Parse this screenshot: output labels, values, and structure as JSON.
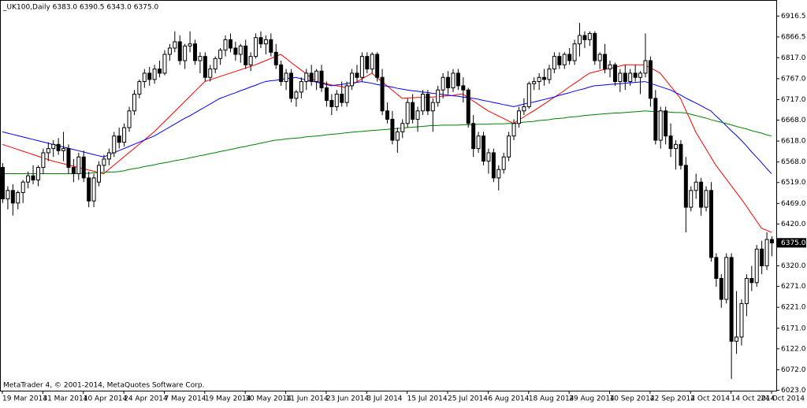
{
  "chart_data": {
    "type": "candlestick",
    "title": "_UK100,Daily  6383.0 6390.5 6343.0 6375.0",
    "footer": "MetaTrader 4, © 2001-2014, MetaQuotes Software Corp.",
    "categories": [
      "19 Mar 2014",
      null,
      null,
      null,
      null,
      null,
      null,
      null,
      "31 Mar 2014",
      null,
      null,
      null,
      null,
      null,
      null,
      null,
      "10 Apr 2014",
      null,
      null,
      null,
      null,
      null,
      null,
      null,
      "24 Apr 2014",
      null,
      null,
      null,
      null,
      null,
      null,
      null,
      "7 May 2014",
      null,
      null,
      null,
      null,
      null,
      null,
      null,
      "19 May 2014",
      null,
      null,
      null,
      null,
      null,
      null,
      null,
      "30 May 2014",
      null,
      null,
      null,
      null,
      null,
      null,
      null,
      "11 Jun 2014",
      null,
      null,
      null,
      null,
      null,
      null,
      null,
      "23 Jun 2014",
      null,
      null,
      null,
      null,
      null,
      null,
      null,
      "3 Jul 2014",
      null,
      null,
      null,
      null,
      null,
      null,
      null,
      "15 Jul 2014",
      null,
      null,
      null,
      null,
      null,
      null,
      null,
      "25 Jul 2014",
      null,
      null,
      null,
      null,
      null,
      null,
      null,
      "6 Aug 2014",
      null,
      null,
      null,
      null,
      null,
      null,
      null,
      "18 Aug 2014",
      null,
      null,
      null,
      null,
      null,
      null,
      null,
      "29 Aug 2014",
      null,
      null,
      null,
      null,
      null,
      null,
      null,
      "10 Sep 2014",
      null,
      null,
      null,
      null,
      null,
      null,
      null,
      "22 Sep 2014",
      null,
      null,
      null,
      null,
      null,
      null,
      null,
      "2 Oct 2014",
      null,
      null,
      null,
      null,
      null,
      null,
      null,
      "14 Oct 2014",
      null,
      null,
      null,
      null,
      null,
      null,
      null,
      "24 Oct 2014"
    ],
    "open": [
      6555,
      6480,
      6500,
      6470,
      6495,
      6520,
      6535,
      6525,
      6555,
      6590,
      6600,
      6610,
      6595,
      6600,
      6555,
      6540,
      6580,
      6530,
      6475,
      6520,
      6560,
      6575,
      6590,
      6630,
      6615,
      6650,
      6690,
      6730,
      6760,
      6780,
      6765,
      6790,
      6780,
      6825,
      6840,
      6855,
      6810,
      6845,
      6850,
      6810,
      6820,
      6770,
      6790,
      6815,
      6835,
      6860,
      6840,
      6825,
      6845,
      6800,
      6820,
      6865,
      6850,
      6860,
      6830,
      6800,
      6760,
      6780,
      6720,
      6735,
      6760,
      6780,
      6760,
      6785,
      6745,
      6715,
      6700,
      6730,
      6710,
      6750,
      6780,
      6770,
      6820,
      6790,
      6825,
      6770,
      6690,
      6670,
      6620,
      6640,
      6660,
      6710,
      6670,
      6690,
      6730,
      6690,
      6710,
      6740,
      6770,
      6745,
      6780,
      6750,
      6740,
      6660,
      6600,
      6630,
      6570,
      6590,
      6530,
      6550,
      6580,
      6630,
      6660,
      6690,
      6700,
      6755,
      6760,
      6770,
      6765,
      6790,
      6820,
      6800,
      6825,
      6810,
      6850,
      6870,
      6860,
      6875,
      6810,
      6825,
      6790,
      6800,
      6760,
      6780,
      6760,
      6780,
      6770,
      6780,
      6810,
      6720,
      6620,
      6690,
      6630,
      6600,
      6610,
      6560,
      6460,
      6500,
      6520,
      6460,
      6500,
      6340,
      6290,
      6240,
      6340,
      6140,
      6150,
      6230,
      6290,
      6280,
      6360,
      6320,
      6383
    ],
    "high": [
      6565,
      6510,
      6515,
      6500,
      6525,
      6545,
      6560,
      6560,
      6600,
      6615,
      6620,
      6625,
      6640,
      6610,
      6575,
      6590,
      6595,
      6545,
      6540,
      6570,
      6585,
      6600,
      6640,
      6650,
      6660,
      6700,
      6740,
      6765,
      6790,
      6795,
      6800,
      6810,
      6835,
      6850,
      6880,
      6870,
      6850,
      6880,
      6860,
      6830,
      6830,
      6800,
      6820,
      6840,
      6870,
      6875,
      6855,
      6850,
      6860,
      6830,
      6875,
      6880,
      6870,
      6875,
      6850,
      6810,
      6790,
      6790,
      6740,
      6770,
      6790,
      6800,
      6790,
      6800,
      6760,
      6730,
      6740,
      6760,
      6760,
      6790,
      6800,
      6830,
      6830,
      6830,
      6830,
      6790,
      6710,
      6690,
      6650,
      6670,
      6720,
      6730,
      6700,
      6740,
      6740,
      6720,
      6750,
      6780,
      6785,
      6790,
      6790,
      6770,
      6745,
      6680,
      6640,
      6640,
      6600,
      6600,
      6560,
      6590,
      6640,
      6670,
      6700,
      6720,
      6760,
      6770,
      6780,
      6790,
      6800,
      6830,
      6830,
      6830,
      6840,
      6860,
      6900,
      6880,
      6880,
      6880,
      6830,
      6850,
      6810,
      6805,
      6790,
      6800,
      6790,
      6800,
      6785,
      6875,
      6820,
      6740,
      6700,
      6700,
      6660,
      6620,
      6620,
      6580,
      6510,
      6540,
      6530,
      6510,
      6520,
      6350,
      6300,
      6350,
      6350,
      6260,
      6240,
      6300,
      6320,
      6370,
      6380,
      6400,
      6390.5
    ],
    "low": [
      6470,
      6455,
      6440,
      6455,
      6470,
      6505,
      6515,
      6510,
      6540,
      6570,
      6580,
      6585,
      6570,
      6540,
      6520,
      6525,
      6520,
      6460,
      6460,
      6510,
      6545,
      6560,
      6580,
      6600,
      6605,
      6640,
      6680,
      6720,
      6745,
      6750,
      6755,
      6770,
      6775,
      6810,
      6830,
      6800,
      6790,
      6830,
      6800,
      6780,
      6760,
      6760,
      6780,
      6800,
      6820,
      6830,
      6810,
      6805,
      6790,
      6785,
      6815,
      6840,
      6825,
      6820,
      6790,
      6750,
      6740,
      6710,
      6700,
      6720,
      6740,
      6750,
      6740,
      6735,
      6700,
      6680,
      6690,
      6700,
      6700,
      6740,
      6760,
      6760,
      6780,
      6780,
      6760,
      6680,
      6660,
      6610,
      6590,
      6625,
      6650,
      6660,
      6640,
      6680,
      6680,
      6640,
      6700,
      6720,
      6730,
      6735,
      6740,
      6710,
      6650,
      6580,
      6590,
      6560,
      6540,
      6520,
      6500,
      6540,
      6570,
      6620,
      6650,
      6680,
      6695,
      6740,
      6740,
      6750,
      6755,
      6780,
      6790,
      6790,
      6800,
      6800,
      6820,
      6840,
      6845,
      6800,
      6790,
      6780,
      6770,
      6750,
      6735,
      6740,
      6750,
      6760,
      6730,
      6770,
      6700,
      6610,
      6600,
      6610,
      6580,
      6550,
      6550,
      6400,
      6450,
      6480,
      6440,
      6450,
      6330,
      6270,
      6220,
      6230,
      6050,
      6110,
      6130,
      6200,
      6260,
      6270,
      6300,
      6310,
      6343
    ],
    "close": [
      6480,
      6500,
      6470,
      6495,
      6520,
      6535,
      6525,
      6555,
      6590,
      6600,
      6610,
      6595,
      6600,
      6555,
      6540,
      6580,
      6530,
      6475,
      6530,
      6560,
      6575,
      6590,
      6630,
      6615,
      6650,
      6690,
      6730,
      6760,
      6780,
      6765,
      6790,
      6780,
      6825,
      6840,
      6855,
      6810,
      6845,
      6850,
      6810,
      6820,
      6770,
      6790,
      6815,
      6835,
      6860,
      6840,
      6825,
      6845,
      6800,
      6820,
      6865,
      6850,
      6860,
      6830,
      6800,
      6760,
      6780,
      6720,
      6735,
      6760,
      6780,
      6760,
      6785,
      6745,
      6715,
      6700,
      6730,
      6710,
      6750,
      6780,
      6770,
      6820,
      6790,
      6825,
      6770,
      6690,
      6670,
      6620,
      6640,
      6660,
      6710,
      6670,
      6690,
      6730,
      6690,
      6710,
      6740,
      6770,
      6745,
      6780,
      6750,
      6740,
      6660,
      6600,
      6630,
      6570,
      6590,
      6530,
      6550,
      6580,
      6630,
      6660,
      6690,
      6700,
      6755,
      6760,
      6770,
      6765,
      6790,
      6820,
      6800,
      6825,
      6810,
      6850,
      6870,
      6860,
      6875,
      6810,
      6825,
      6790,
      6800,
      6760,
      6780,
      6760,
      6780,
      6770,
      6780,
      6810,
      6720,
      6620,
      6690,
      6630,
      6600,
      6610,
      6560,
      6460,
      6500,
      6520,
      6460,
      6500,
      6340,
      6290,
      6240,
      6340,
      6140,
      6150,
      6230,
      6290,
      6280,
      6360,
      6320,
      6383,
      6375
    ],
    "series": [
      {
        "color": "#ff0000",
        "values": [
          6610,
          6606,
          6602,
          6598,
          6594,
          6590,
          6586,
          6582,
          6578,
          6574,
          6570,
          6567,
          6564,
          6561,
          6558,
          6555,
          6552,
          6549,
          6546,
          6543,
          6540,
          6550,
          6560,
          6570,
          6580,
          6590,
          6600,
          6610,
          6620,
          6630,
          6640,
          6652,
          6664,
          6676,
          6688,
          6700,
          6712,
          6724,
          6736,
          6748,
          6760,
          6764,
          6768,
          6772,
          6776,
          6780,
          6784,
          6788,
          6792,
          6796,
          6800,
          6805,
          6810,
          6815,
          6820,
          6825,
          6816,
          6806,
          6797,
          6788,
          6779,
          6769,
          6760,
          6758,
          6755,
          6752,
          6750,
          6748,
          6745,
          6752,
          6759,
          6766,
          6773,
          6780,
          6770,
          6760,
          6750,
          6740,
          6730,
          6720,
          6721,
          6721,
          6722,
          6722,
          6723,
          6723,
          6724,
          6725,
          6726,
          6727,
          6729,
          6730,
          6722,
          6714,
          6706,
          6698,
          6690,
          6684,
          6678,
          6672,
          6666,
          6660,
          6668,
          6675,
          6683,
          6690,
          6698,
          6706,
          6714,
          6722,
          6730,
          6738,
          6747,
          6755,
          6763,
          6772,
          6780,
          6783,
          6786,
          6789,
          6791,
          6794,
          6797,
          6800,
          6800,
          6800,
          6800,
          6800,
          6793,
          6787,
          6780,
          6765,
          6750,
          6735,
          6720,
          6693,
          6667,
          6640,
          6620,
          6600,
          6580,
          6560,
          6544,
          6528,
          6512,
          6496,
          6480,
          6463,
          6445,
          6428,
          6410,
          6405,
          6400
        ]
      },
      {
        "color": "#0000ff",
        "values": [
          6640,
          6637,
          6634,
          6631,
          6628,
          6625,
          6622,
          6619,
          6616,
          6613,
          6610,
          6607,
          6604,
          6601,
          6598,
          6595,
          6592,
          6589,
          6586,
          6583,
          6580,
          6585,
          6590,
          6595,
          6600,
          6605,
          6610,
          6615,
          6620,
          6625,
          6630,
          6637,
          6644,
          6651,
          6658,
          6665,
          6672,
          6678,
          6685,
          6692,
          6699,
          6706,
          6713,
          6720,
          6724,
          6729,
          6733,
          6738,
          6742,
          6747,
          6751,
          6756,
          6760,
          6762,
          6763,
          6765,
          6767,
          6768,
          6770,
          6767,
          6764,
          6761,
          6759,
          6756,
          6753,
          6750,
          6752,
          6753,
          6755,
          6757,
          6758,
          6760,
          6758,
          6756,
          6753,
          6751,
          6749,
          6747,
          6744,
          6742,
          6740,
          6738,
          6737,
          6735,
          6734,
          6732,
          6731,
          6729,
          6728,
          6726,
          6725,
          6723,
          6722,
          6720,
          6718,
          6715,
          6713,
          6710,
          6708,
          6705,
          6703,
          6700,
          6703,
          6706,
          6709,
          6711,
          6714,
          6717,
          6720,
          6723,
          6727,
          6730,
          6733,
          6737,
          6740,
          6743,
          6747,
          6750,
          6751,
          6752,
          6753,
          6754,
          6755,
          6756,
          6757,
          6758,
          6759,
          6760,
          6756,
          6752,
          6748,
          6744,
          6740,
          6734,
          6728,
          6721,
          6715,
          6709,
          6703,
          6696,
          6690,
          6678,
          6667,
          6655,
          6643,
          6632,
          6620,
          6607,
          6593,
          6580,
          6567,
          6553,
          6540
        ]
      },
      {
        "color": "#008000",
        "values": [
          6540,
          6540,
          6540,
          6540,
          6540,
          6540,
          6540,
          6540,
          6540,
          6540,
          6540,
          6540,
          6540,
          6540,
          6540,
          6540,
          6541,
          6541,
          6542,
          6543,
          6543,
          6544,
          6544,
          6545,
          6547,
          6550,
          6552,
          6554,
          6557,
          6559,
          6561,
          6564,
          6566,
          6568,
          6571,
          6573,
          6575,
          6578,
          6580,
          6583,
          6585,
          6588,
          6590,
          6593,
          6595,
          6598,
          6600,
          6603,
          6605,
          6608,
          6610,
          6613,
          6615,
          6618,
          6620,
          6621,
          6623,
          6624,
          6625,
          6626,
          6628,
          6629,
          6630,
          6631,
          6633,
          6634,
          6635,
          6636,
          6638,
          6639,
          6640,
          6641,
          6642,
          6643,
          6644,
          6645,
          6646,
          6647,
          6648,
          6649,
          6650,
          6651,
          6652,
          6653,
          6654,
          6655,
          6655,
          6656,
          6656,
          6656,
          6656,
          6657,
          6657,
          6657,
          6658,
          6658,
          6658,
          6659,
          6659,
          6659,
          6660,
          6660,
          6661,
          6663,
          6664,
          6665,
          6667,
          6668,
          6669,
          6671,
          6672,
          6673,
          6675,
          6676,
          6677,
          6679,
          6680,
          6681,
          6682,
          6683,
          6684,
          6685,
          6685,
          6686,
          6687,
          6688,
          6689,
          6690,
          6689,
          6689,
          6688,
          6688,
          6687,
          6686,
          6686,
          6685,
          6682,
          6679,
          6676,
          6673,
          6669,
          6666,
          6663,
          6660,
          6657,
          6653,
          6650,
          6647,
          6643,
          6640,
          6637,
          6633,
          6630
        ]
      }
    ],
    "bull_color": "#ffffff",
    "bear_color": "#000000",
    "ylim": [
      6022,
      6951
    ],
    "yticks": [
      6916.5,
      6866.5,
      {
        "value": 6817,
        "label": "6817.0"
      },
      {
        "value": 6767,
        "label": "6767.0"
      },
      {
        "value": 6717,
        "label": "6717.0"
      },
      {
        "value": 6668,
        "label": "6668.0"
      },
      {
        "value": 6618,
        "label": "6618.0"
      },
      {
        "value": 6568,
        "label": "6568.0"
      },
      {
        "value": 6519,
        "label": "6519.0"
      },
      {
        "value": 6469,
        "label": "6469.0"
      },
      {
        "value": 6420,
        "label": "6420.0"
      },
      {
        "value": 6320,
        "label": "6320.0"
      },
      {
        "value": 6271,
        "label": "6271.0"
      },
      {
        "value": 6221,
        "label": "6221.0"
      },
      {
        "value": 6171,
        "label": "6171.0"
      },
      {
        "value": 6122,
        "label": "6122.0"
      },
      {
        "value": 6072,
        "label": "6072.0"
      },
      {
        "value": 6023,
        "label": "6023.0"
      }
    ],
    "last_price": {
      "value": 6375,
      "label": "6375.0"
    },
    "grid": false
  }
}
